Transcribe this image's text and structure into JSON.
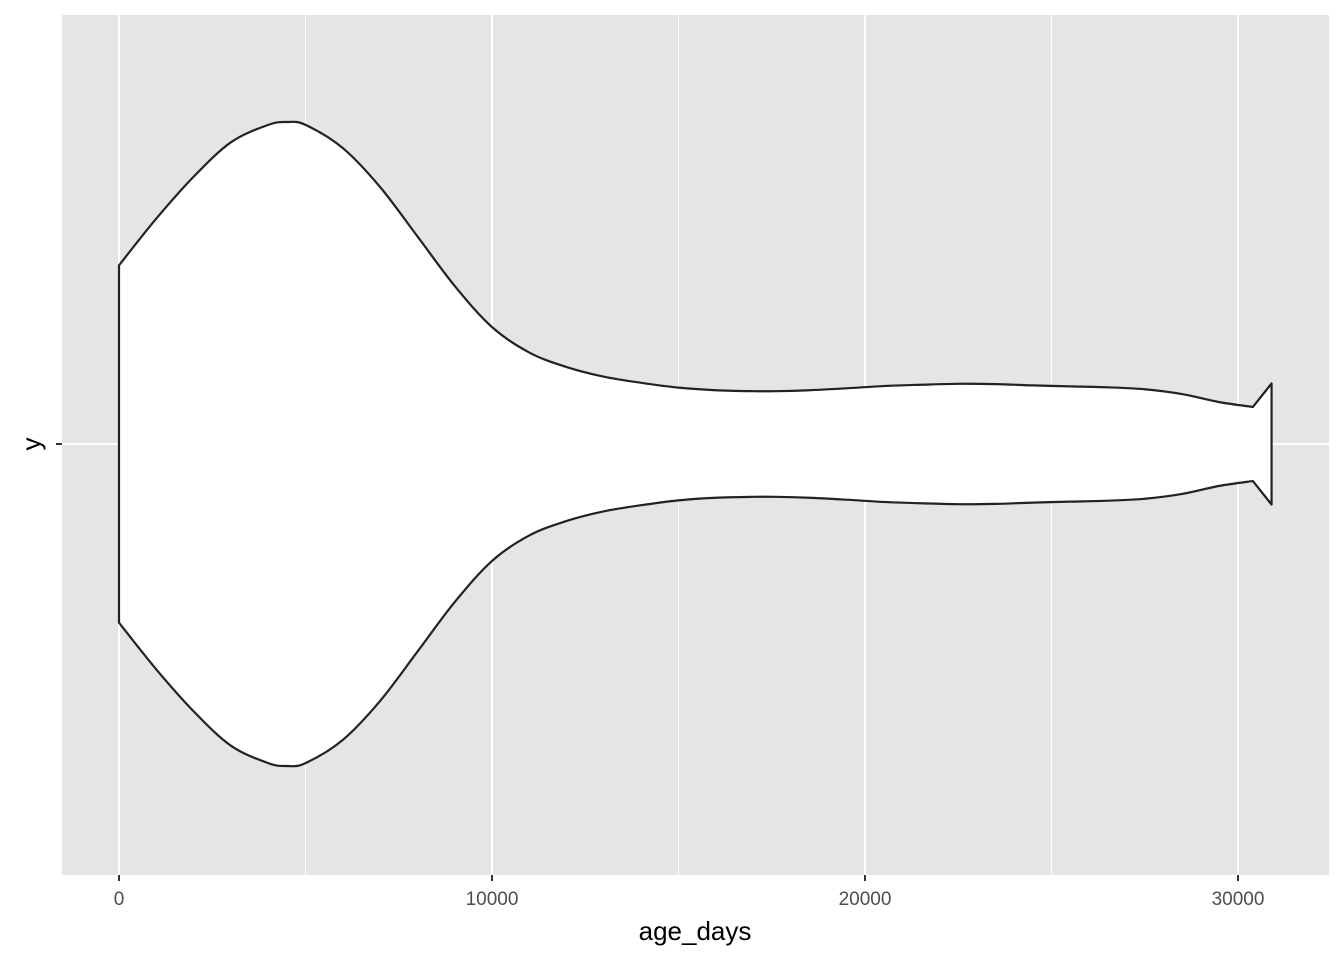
{
  "chart_data": {
    "type": "violin",
    "orientation": "horizontal",
    "xlabel": "age_days",
    "ylabel": "y",
    "xlim": [
      -1500,
      32500
    ],
    "x_ticks": [
      0,
      10000,
      20000,
      30000
    ],
    "x_tick_labels": [
      "0",
      "10000",
      "20000",
      "30000"
    ],
    "y_categories": [
      ""
    ],
    "grid": true,
    "colors": {
      "panel": "#e5e5e5",
      "grid": "#ffffff",
      "violin_fill": "#ffffff",
      "violin_stroke": "#222222"
    },
    "density_scale_max": 1,
    "density": {
      "x": [
        0,
        1000,
        2000,
        3000,
        4000,
        4500,
        5000,
        6000,
        7000,
        8000,
        9000,
        10000,
        11000,
        12000,
        13000,
        14000,
        15000,
        16000,
        17000,
        17600,
        18500,
        19500,
        20500,
        21500,
        22500,
        23500,
        24500,
        25500,
        26500,
        27500,
        28500,
        29500,
        30400,
        30900
      ],
      "half_width": [
        0.555,
        0.7,
        0.83,
        0.937,
        0.991,
        1.0,
        0.991,
        0.919,
        0.798,
        0.645,
        0.491,
        0.363,
        0.284,
        0.239,
        0.209,
        0.19,
        0.175,
        0.167,
        0.164,
        0.164,
        0.167,
        0.173,
        0.18,
        0.184,
        0.187,
        0.186,
        0.182,
        0.179,
        0.176,
        0.17,
        0.155,
        0.13,
        0.115,
        0.188
      ]
    }
  }
}
